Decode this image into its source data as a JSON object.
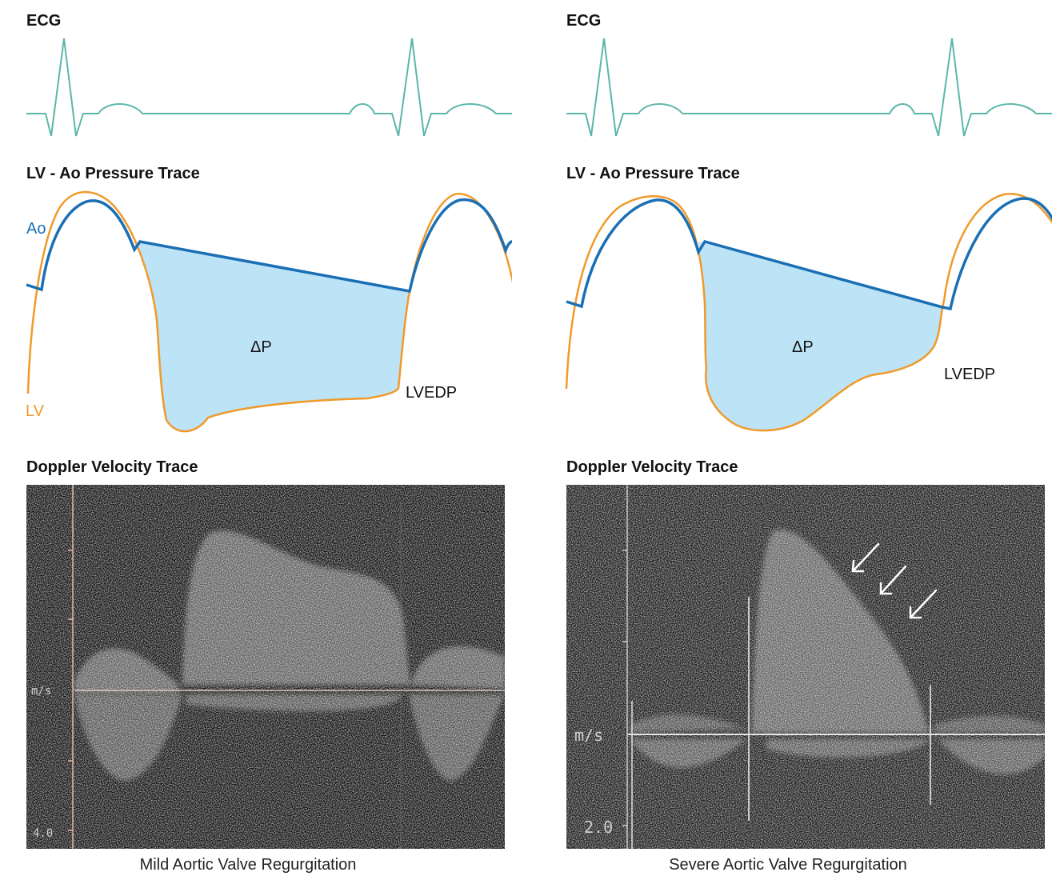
{
  "colors": {
    "ecg": "#5bb6a9",
    "ao": "#1a6fb5",
    "lv": "#f09a2a",
    "fill": "#bde3f6",
    "doppler_bg": "#0b0b0b",
    "doppler_axis": "#e8b8a0"
  },
  "panels": [
    {
      "ecg_title": "ECG",
      "pressure_title": "LV - Ao Pressure Trace",
      "ao_label": "Ao",
      "lv_label": "LV",
      "delta_label": "ΔP",
      "lvedp_label": "LVEDP",
      "doppler_title": "Doppler Velocity Trace",
      "doppler_unit": "m/s",
      "doppler_scale": "4.0",
      "caption": "Mild Aortic Valve Regurgitation"
    },
    {
      "ecg_title": "ECG",
      "pressure_title": "LV - Ao Pressure Trace",
      "delta_label": "ΔP",
      "lvedp_label": "LVEDP",
      "doppler_title": "Doppler Velocity Trace",
      "doppler_unit": "m/s",
      "doppler_scale": "2.0",
      "caption": "Severe Aortic Valve Regurgitation",
      "arrow_icons": [
        "arrow-icon",
        "arrow-icon",
        "arrow-icon"
      ]
    }
  ]
}
